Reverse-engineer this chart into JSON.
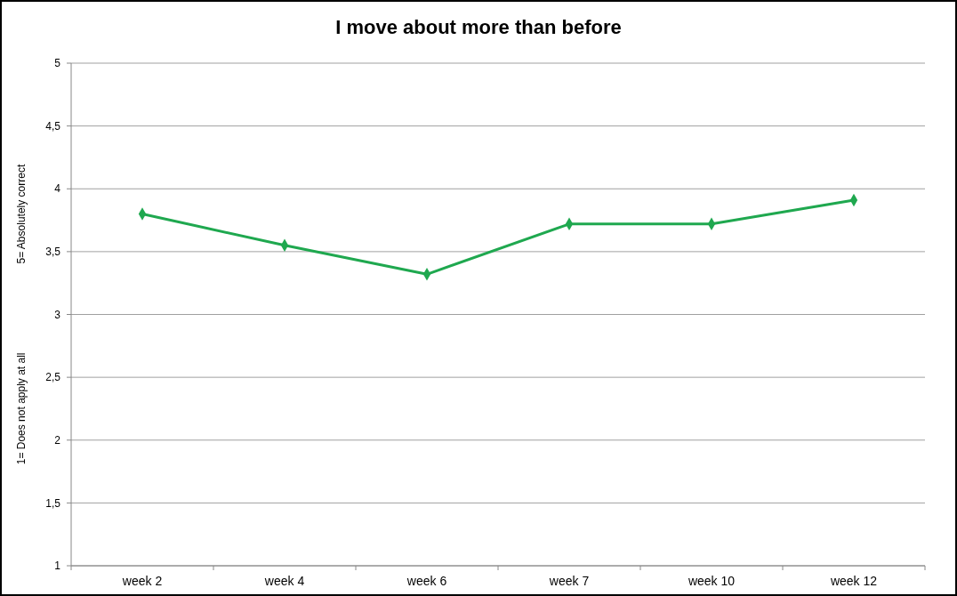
{
  "chart_data": {
    "type": "line",
    "title": "I move about more than before",
    "ylabel": "1= Does not apply at all                              5= Absolutely correct",
    "categories": [
      "week 2",
      "week 4",
      "week 6",
      "week 7",
      "week 10",
      "week 12"
    ],
    "series": [
      {
        "color": "#1fa84f",
        "values": [
          3.8,
          3.55,
          3.32,
          3.72,
          3.72,
          3.91
        ]
      }
    ],
    "ylim": [
      1,
      5
    ],
    "yticks": [
      1,
      {
        "value": 1.5,
        "label": "1,5"
      },
      2,
      {
        "value": 2.5,
        "label": "2,5"
      },
      3,
      {
        "value": 3.5,
        "label": "3,5"
      },
      4,
      {
        "value": 4.5,
        "label": "4,5"
      },
      5
    ],
    "grid": "y",
    "marker": "diamond"
  }
}
